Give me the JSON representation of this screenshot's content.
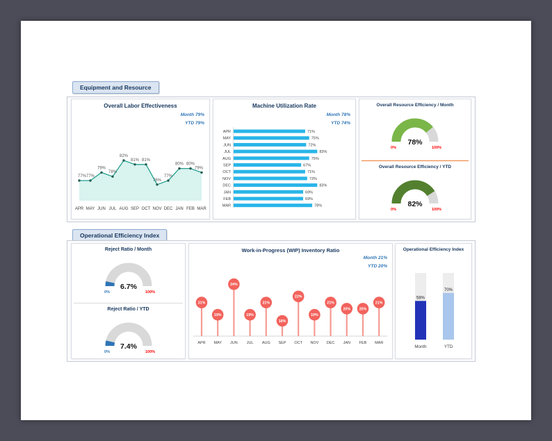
{
  "sections": {
    "equipment": {
      "title": "Equipment and Resource"
    },
    "operational": {
      "title": "Operational Efficiency Index"
    }
  },
  "colors": {
    "background": "#4c4c59",
    "title_navy": "#17375e",
    "legend_blue": "#2e75b6",
    "label_red": "#ff0000"
  },
  "chart_data": [
    {
      "id": "labor_effectiveness",
      "type": "line",
      "title": "Overall Labor Effectiveness",
      "legend": [
        "Month 79%",
        "YTD 79%"
      ],
      "categories": [
        "APR",
        "MAY",
        "JUN",
        "JUL",
        "AUG",
        "SEP",
        "OCT",
        "NOV",
        "DEC",
        "JAN",
        "FEB",
        "MAR"
      ],
      "values": [
        77,
        77,
        79,
        78,
        82,
        81,
        81,
        76,
        77,
        80,
        80,
        79
      ],
      "unit": "%",
      "ylim": [
        72,
        84
      ],
      "grid": false,
      "legend_position": "top-right",
      "line_color": "#21a08e",
      "fill_color": "#d9f3ef",
      "marker_color": "#275d55"
    },
    {
      "id": "machine_utilization",
      "type": "bar",
      "orientation": "horizontal",
      "title": "Machine Utilization Rate",
      "legend": [
        "Month 78%",
        "YTD 74%"
      ],
      "categories": [
        "APR",
        "MAY",
        "JUN",
        "JUL",
        "AUG",
        "SEP",
        "OCT",
        "NOV",
        "DEC",
        "JAN",
        "FEB",
        "MAR"
      ],
      "values": [
        71,
        75,
        72,
        83,
        75,
        67,
        71,
        73,
        83,
        69,
        69,
        78
      ],
      "unit": "%",
      "xlim": [
        0,
        100
      ],
      "grid": false,
      "legend_position": "top-right",
      "bar_color": "#29b5e8"
    },
    {
      "id": "resource_efficiency_month",
      "type": "gauge",
      "title": "Overall Resource Efficiency / Month",
      "value": 78,
      "value_label": "78%",
      "min_label": "0%",
      "max_label": "100%",
      "range": [
        0,
        100
      ],
      "arc_color": "#7ab648",
      "track_color": "#d9d9d9",
      "min_label_color": "#ff0000",
      "max_label_color": "#ff0000"
    },
    {
      "id": "resource_efficiency_ytd",
      "type": "gauge",
      "title": "Overall Resource Efficiency / YTD",
      "value": 82,
      "value_label": "82%",
      "min_label": "0%",
      "max_label": "100%",
      "range": [
        0,
        100
      ],
      "arc_color": "#53802f",
      "track_color": "#d9d9d9",
      "min_label_color": "#ff0000",
      "max_label_color": "#ff0000"
    },
    {
      "id": "reject_ratio_month",
      "type": "gauge",
      "title": "Reject Ratio / Month",
      "value": 6.7,
      "value_label": "6.7%",
      "min_label": "0%",
      "max_label": "100%",
      "range": [
        0,
        100
      ],
      "arc_color": "#2e75b6",
      "track_color": "#d9d9d9",
      "min_label_color": "#2e75b6",
      "max_label_color": "#ff0000"
    },
    {
      "id": "reject_ratio_ytd",
      "type": "gauge",
      "title": "Reject Ratio / YTD",
      "value": 7.4,
      "value_label": "7.4%",
      "min_label": "0%",
      "max_label": "100%",
      "range": [
        0,
        100
      ],
      "arc_color": "#2e75b6",
      "track_color": "#d9d9d9",
      "min_label_color": "#2e75b6",
      "max_label_color": "#ff0000"
    },
    {
      "id": "wip_inventory_ratio",
      "type": "lollipop",
      "title": "Work-in-Progress (WIP) Inventory Ratio",
      "legend": [
        "Month 21%",
        "YTD 20%"
      ],
      "categories": [
        "APR",
        "MAY",
        "JUN",
        "JUL",
        "AUG",
        "SEP",
        "OCT",
        "NOV",
        "DEC",
        "JAN",
        "FEB",
        "MAR"
      ],
      "values": [
        21,
        19,
        24,
        19,
        21,
        18,
        22,
        19,
        21,
        20,
        20,
        21
      ],
      "unit": "%",
      "ylim": [
        0,
        26
      ],
      "grid": false,
      "legend_position": "top-right",
      "marker_color": "#f2635c",
      "stem_color": "#f59b94"
    },
    {
      "id": "operational_efficiency_index",
      "type": "column",
      "title": "Operational Efficiency Index",
      "categories": [
        "Month",
        "YTD"
      ],
      "values": [
        58,
        70
      ],
      "unit": "%",
      "ylim": [
        0,
        100
      ],
      "grid": false,
      "bar_colors": [
        "#2233b8",
        "#a9c6ec"
      ],
      "track_color": "#ededed"
    }
  ]
}
